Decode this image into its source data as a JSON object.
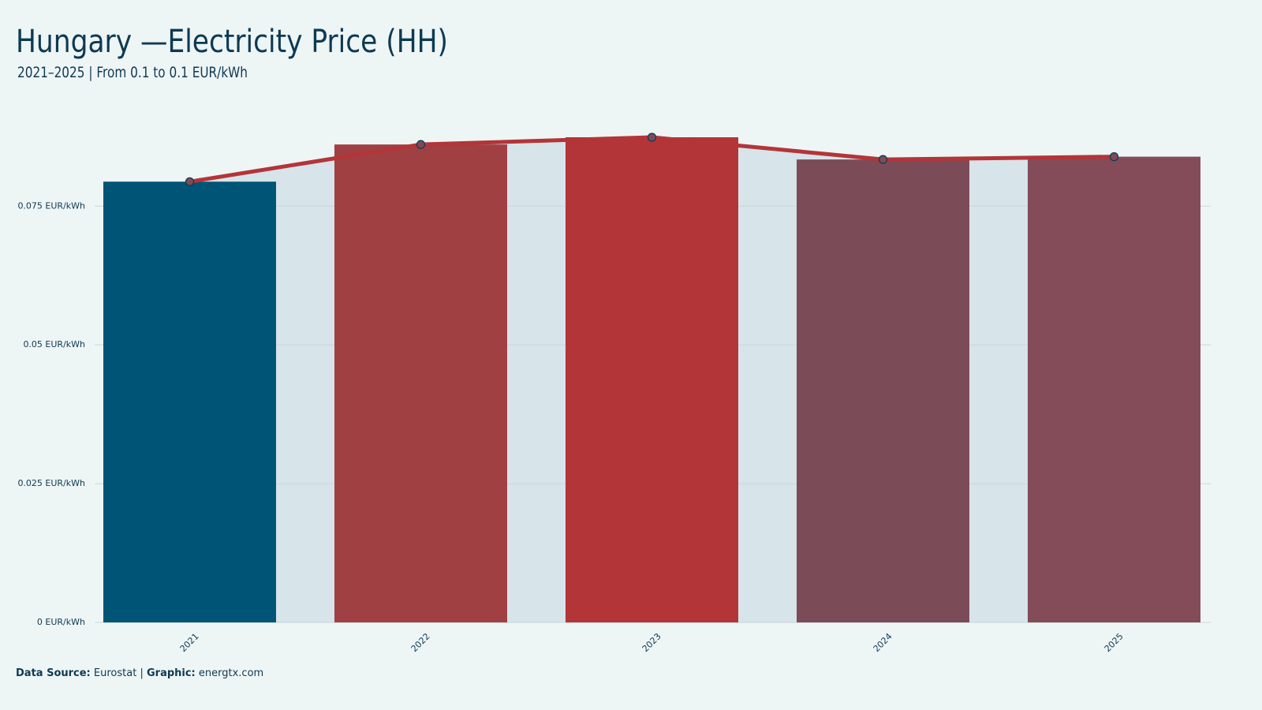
{
  "chart_data": {
    "type": "bar",
    "title": "Hungary —Electricity Price (HH)",
    "subtitle": "2021–2025 | From 0.1 to 0.1 EUR/kWh",
    "categories": [
      "2021",
      "2022",
      "2023",
      "2024",
      "2025"
    ],
    "values": [
      0.0794,
      0.0861,
      0.0874,
      0.0834,
      0.0839
    ],
    "colors": [
      "#005476",
      "#a14043",
      "#b33538",
      "#7b4c57",
      "#834c58"
    ],
    "line_color": "#b33538",
    "area_color": "#d7e4ea",
    "ylim": [
      0,
      0.0874
    ],
    "yticks": [
      {
        "value": 0,
        "label": "0 EUR/kWh"
      },
      {
        "value": 0.025,
        "label": "0.025 EUR/kWh"
      },
      {
        "value": 0.05,
        "label": "0.05 EUR/kWh"
      },
      {
        "value": 0.075,
        "label": "0.075 EUR/kWh"
      }
    ],
    "grid": true,
    "source_label": "Data Source:",
    "source": "Eurostat",
    "graphic_label": "Graphic:",
    "graphic": "energtx.com"
  }
}
